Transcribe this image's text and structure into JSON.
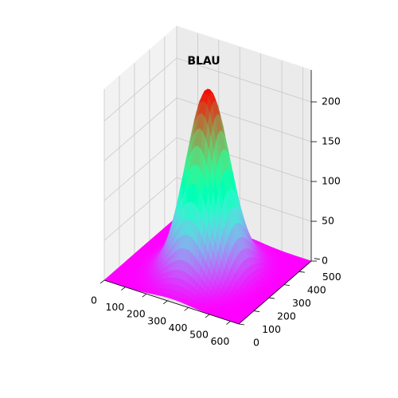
{
  "chart_data": {
    "type": "surface",
    "title": "BLAU",
    "xlabel": "",
    "ylabel": "",
    "zlabel": "",
    "colormap": "rainbow",
    "surface_base_color": "#8000ff",
    "peak_color": "#ff0000",
    "x_ticks": [
      "0",
      "100",
      "200",
      "300",
      "400",
      "500",
      "600"
    ],
    "y_ticks": [
      "0",
      "100",
      "200",
      "300",
      "400",
      "500"
    ],
    "z_ticks": [
      "0",
      "50",
      "100",
      "150",
      "200"
    ],
    "xlim": [
      0,
      640
    ],
    "ylim": [
      0,
      480
    ],
    "zlim": [
      0,
      240
    ],
    "grid": true,
    "peak": {
      "x": 320,
      "y": 240,
      "z": 228
    },
    "spread": {
      "sigma_x": 85,
      "sigma_y": 85
    }
  }
}
